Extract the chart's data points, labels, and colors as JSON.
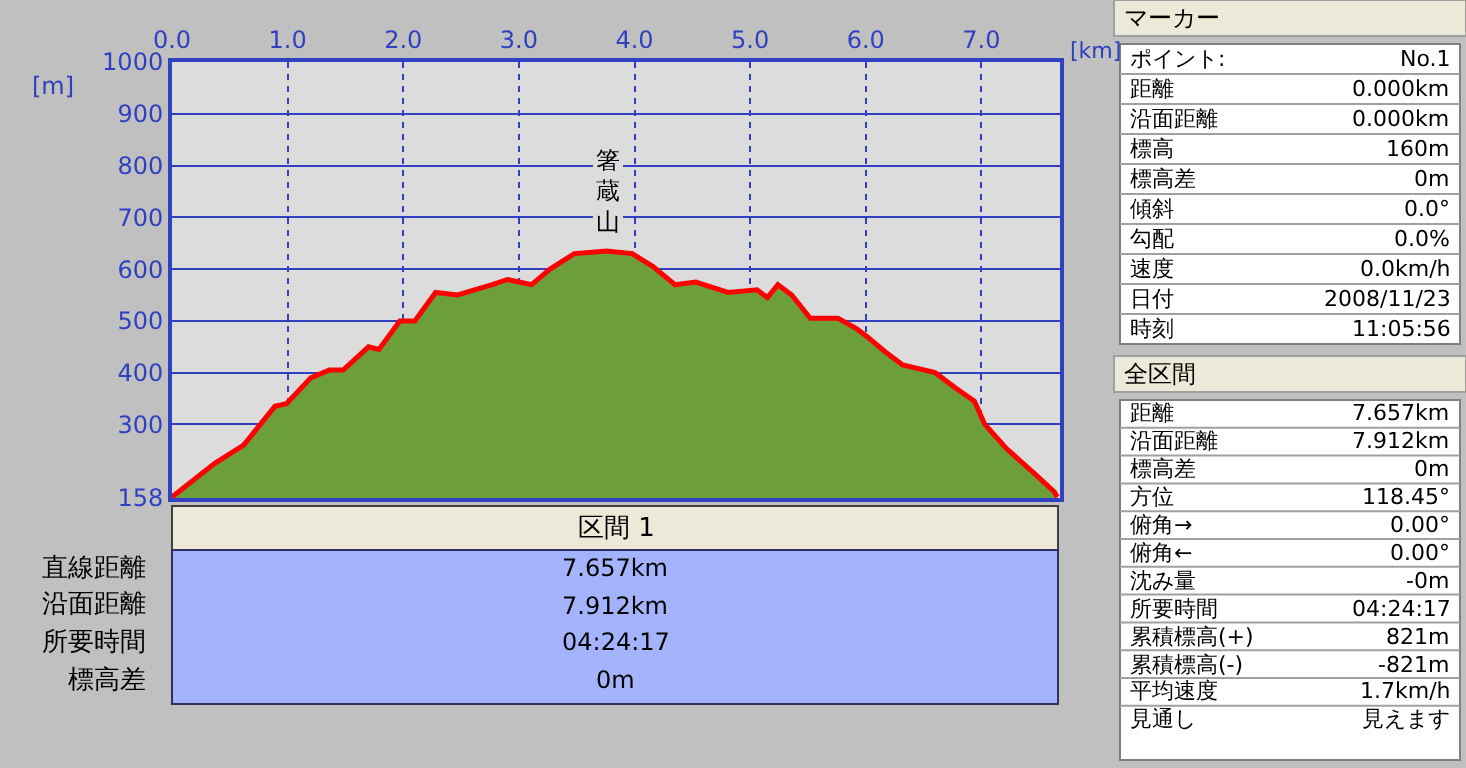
{
  "chart_data": [
    {
      "type": "area",
      "xlabel": "[km]",
      "ylabel": "[m]",
      "x": [
        0,
        0.37,
        0.62,
        0.89,
        0.99,
        1.2,
        1.36,
        1.48,
        1.7,
        1.79,
        1.97,
        2.1,
        2.28,
        2.47,
        2.77,
        2.9,
        3.11,
        3.27,
        3.48,
        3.76,
        3.98,
        4.16,
        4.35,
        4.53,
        4.81,
        5.06,
        5.15,
        5.24,
        5.36,
        5.52,
        5.76,
        5.92,
        6.01,
        6.17,
        6.32,
        6.6,
        6.78,
        6.94,
        7.03,
        7.21,
        7.46,
        7.63,
        7.657
      ],
      "series": [
        {
          "type": "area",
          "color": "#6c9f3a",
          "values": [
            160,
            225,
            260,
            335,
            340,
            390,
            405,
            405,
            450,
            445,
            500,
            500,
            555,
            550,
            570,
            580,
            570,
            600,
            630,
            635,
            630,
            605,
            570,
            575,
            555,
            560,
            545,
            570,
            550,
            505,
            505,
            485,
            470,
            440,
            415,
            400,
            370,
            345,
            300,
            255,
            205,
            170,
            160
          ]
        },
        {
          "type": "line",
          "color": "#ff0000",
          "values": [
            160,
            225,
            260,
            335,
            340,
            390,
            405,
            405,
            450,
            445,
            500,
            500,
            555,
            550,
            570,
            580,
            570,
            600,
            630,
            635,
            630,
            605,
            570,
            575,
            555,
            560,
            545,
            570,
            550,
            505,
            505,
            485,
            470,
            440,
            415,
            400,
            370,
            345,
            300,
            255,
            205,
            170,
            160
          ]
        }
      ],
      "xlim": [
        0,
        7.68
      ],
      "ylim": [
        158,
        1000
      ],
      "xticks": [
        {
          "value": 0,
          "label": "0.0"
        },
        {
          "value": 1,
          "label": "1.0"
        },
        {
          "value": 2,
          "label": "2.0"
        },
        {
          "value": 3,
          "label": "3.0"
        },
        {
          "value": 4,
          "label": "4.0"
        },
        {
          "value": 5,
          "label": "5.0"
        },
        {
          "value": 6,
          "label": "6.0"
        },
        {
          "value": 7,
          "label": "7.0"
        }
      ],
      "yticks": [
        158,
        300,
        400,
        500,
        600,
        700,
        800,
        900,
        1000
      ],
      "grid": true,
      "legend": false,
      "annotations": [
        "箸蔵山"
      ]
    },
    {
      "type": "other",
      "title": "区間 1",
      "annotations": [
        "直線距離",
        "7.657km",
        "沿面距離",
        "7.912km",
        "所要時間",
        "04:24:17",
        "標高差",
        "0m"
      ]
    },
    {
      "type": "other",
      "title": "マーカー",
      "annotations": [
        "ポイント:",
        "No.1",
        "距離",
        "0.000km",
        "沿面距離",
        "0.000km",
        "標高",
        "160m",
        "標高差",
        "0m",
        "傾斜",
        "0.0°",
        "勾配",
        "0.0%",
        "速度",
        "0.0km/h",
        "日付",
        "2008/11/23",
        "時刻",
        "11:05:56"
      ]
    },
    {
      "type": "other",
      "title": "全区間",
      "annotations": [
        "距離",
        "7.657km",
        "沿面距離",
        "7.912km",
        "標高差",
        "0m",
        "方位",
        "118.45°",
        "俯角→",
        "0.00°",
        "俯角←",
        "0.00°",
        "沈み量",
        "-0m",
        "所要時間",
        "04:24:17",
        "累積標高(+)",
        "821m",
        "累積標高(-)",
        "-821m",
        "平均速度",
        "1.7km/h",
        "見通し",
        "見えます"
      ]
    }
  ]
}
